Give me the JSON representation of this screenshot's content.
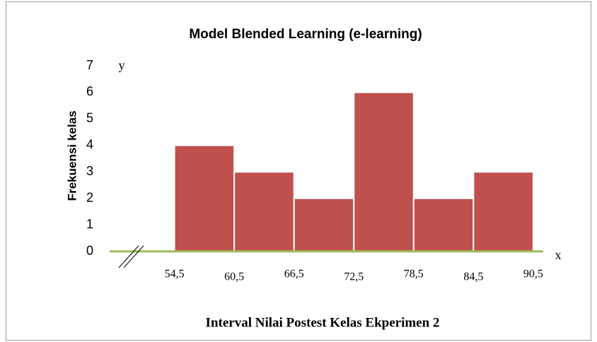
{
  "chart_data": {
    "type": "histogram",
    "title": "Model Blended Learning (e-learning)",
    "y_label": "Frekuensi kelas",
    "x_label": "Interval Nilai Postest Kelas Ekperimen 2",
    "annotations": [
      "y",
      "x"
    ],
    "bins": [
      54.5,
      60.5,
      66.5,
      72.5,
      78.5,
      84.5,
      90.5
    ],
    "values": [
      4,
      3,
      2,
      6,
      2,
      3
    ],
    "color": "#c0504d",
    "axis_color": "#9bbb59",
    "xlim": [
      48,
      91.5
    ],
    "xticks": [
      {
        "value": 54.5,
        "label": "54,5"
      },
      {
        "value": 60.5,
        "label": "60,5"
      },
      {
        "value": 66.5,
        "label": "66,5"
      },
      {
        "value": 72.5,
        "label": "72,5"
      },
      {
        "value": 78.5,
        "label": "78,5"
      },
      {
        "value": 84.5,
        "label": "84,5"
      },
      {
        "value": 90.5,
        "label": "90,5"
      }
    ],
    "ylim": [
      0,
      7
    ],
    "yticks": [
      0,
      1,
      2,
      3,
      4,
      5,
      6,
      7
    ],
    "grid": false
  }
}
